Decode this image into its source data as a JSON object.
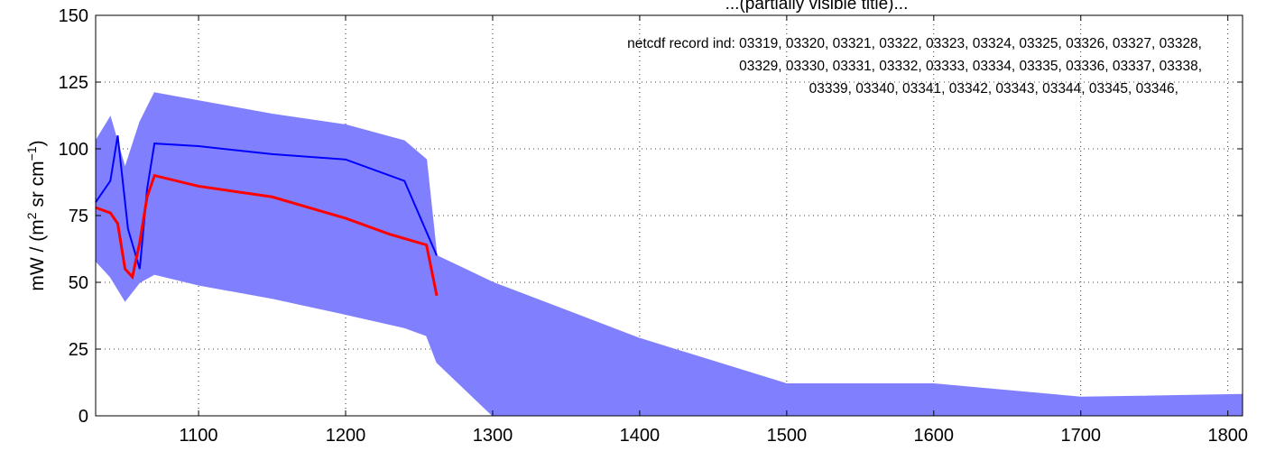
{
  "chart_data": {
    "type": "line",
    "title": "",
    "title_fragment": "...(partially visible title)...",
    "ylabel_parts": {
      "main": "mW / (m",
      "sup1": "2",
      "mid": " sr cm",
      "sup2": "−1",
      "end": ")"
    },
    "xlabel": "",
    "xlim": [
      1030,
      1810
    ],
    "ylim": [
      0,
      150
    ],
    "x_ticks": [
      1100,
      1200,
      1300,
      1400,
      1500,
      1600,
      1700,
      1800
    ],
    "y_ticks": [
      0,
      25,
      50,
      75,
      100,
      125,
      150
    ],
    "grid": true,
    "annotation_lines": [
      "netcdf record ind:  03319, 03320, 03321, 03322, 03323, 03324, 03325, 03326, 03327, 03328,",
      "03329, 03330, 03331, 03332, 03333, 03334, 03335, 03336, 03337, 03338,",
      "03339, 03340, 03341, 03342, 03343, 03344, 03345, 03346,"
    ],
    "colors": {
      "envelope": "#8080ff",
      "blue": "#0000ff",
      "red": "#ff0000"
    },
    "series": [
      {
        "role": "envelope",
        "x": [
          1030,
          1040,
          1050,
          1060,
          1070,
          1100,
          1150,
          1200,
          1240,
          1255,
          1262,
          1300,
          1400,
          1500,
          1600,
          1700,
          1810
        ],
        "upper": [
          103,
          112,
          93,
          110,
          121,
          118,
          113,
          109,
          103,
          96,
          60,
          50,
          29,
          12,
          12,
          7,
          8
        ],
        "lower": [
          58,
          52,
          43,
          50,
          53,
          49,
          44,
          38,
          33,
          30,
          20,
          0,
          0,
          0,
          0,
          0,
          0
        ]
      },
      {
        "role": "blue",
        "x": [
          1030,
          1040,
          1045,
          1052,
          1060,
          1065,
          1070,
          1100,
          1150,
          1200,
          1220,
          1240,
          1262
        ],
        "y": [
          80,
          88,
          105,
          70,
          55,
          85,
          102,
          101,
          98,
          96,
          92,
          88,
          60
        ]
      },
      {
        "role": "red",
        "x": [
          1030,
          1040,
          1045,
          1050,
          1055,
          1060,
          1065,
          1070,
          1100,
          1150,
          1200,
          1230,
          1255,
          1262
        ],
        "y": [
          78,
          76,
          72,
          55,
          52,
          65,
          82,
          90,
          86,
          82,
          74,
          68,
          64,
          45
        ]
      }
    ]
  }
}
